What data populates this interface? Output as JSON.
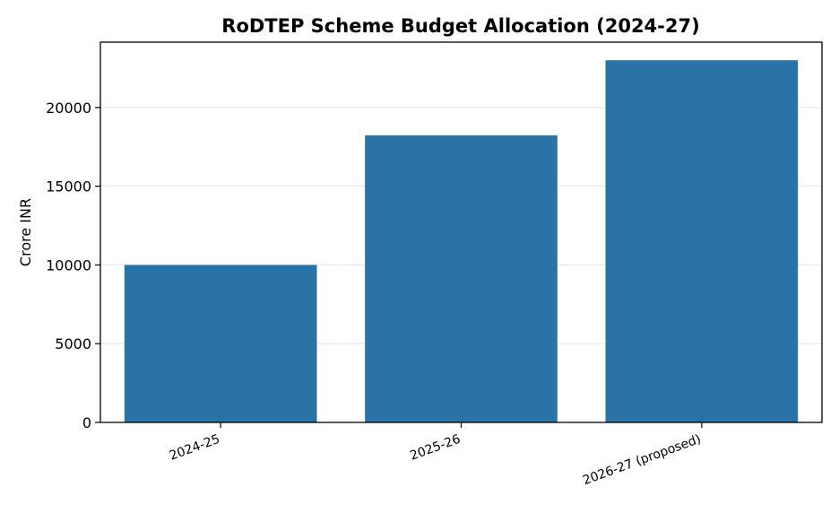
{
  "chart_data": {
    "type": "bar",
    "title": "RoDTEP Scheme Budget Allocation (2024-27)",
    "xlabel": "",
    "ylabel": "Crore INR",
    "categories": [
      "2024-25",
      "2025-26",
      "2026-27 (proposed)"
    ],
    "values": [
      10000,
      18233,
      23000
    ],
    "ylim": [
      0,
      24150
    ],
    "yticks": [
      0,
      5000,
      10000,
      15000,
      20000
    ],
    "grid": "horizontal",
    "legend": "none",
    "bar_color": "#2a73a6",
    "xtick_rotation_deg": -20
  }
}
